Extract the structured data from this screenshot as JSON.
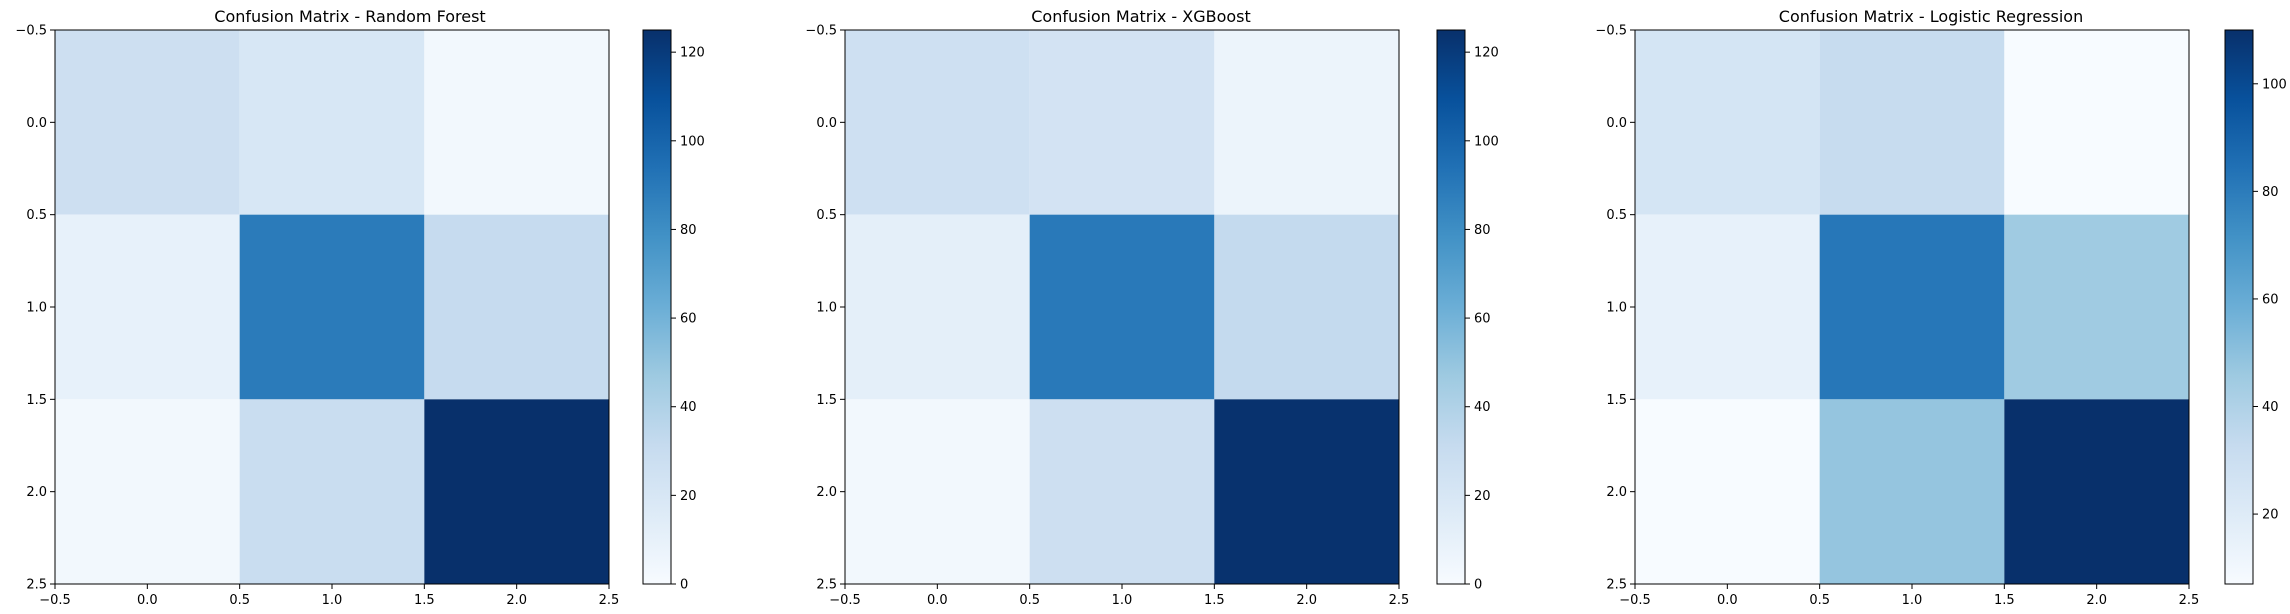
{
  "chart_data": [
    {
      "type": "heatmap",
      "title": "Confusion Matrix - Random Forest",
      "matrix": [
        [
          27,
          20,
          3
        ],
        [
          10,
          89,
          31
        ],
        [
          3,
          29,
          125
        ]
      ],
      "xlim": [
        -0.5,
        2.5
      ],
      "ylim": [
        2.5,
        -0.5
      ],
      "xticks": [
        "-0.5",
        "0.0",
        "0.5",
        "1.0",
        "1.5",
        "2.0",
        "2.5"
      ],
      "yticks": [
        "-0.5",
        "0.0",
        "0.5",
        "1.0",
        "1.5",
        "2.0",
        "2.5"
      ],
      "colorbar": {
        "min": 0,
        "max": 125,
        "ticks": [
          "0",
          "20",
          "40",
          "60",
          "80",
          "100",
          "120"
        ]
      },
      "colormap": "Blues"
    },
    {
      "type": "heatmap",
      "title": "Confusion Matrix - XGBoost",
      "matrix": [
        [
          26,
          23,
          7
        ],
        [
          12,
          90,
          32
        ],
        [
          3,
          27,
          124
        ]
      ],
      "xlim": [
        -0.5,
        2.5
      ],
      "ylim": [
        2.5,
        -0.5
      ],
      "xticks": [
        "-0.5",
        "0.0",
        "0.5",
        "1.0",
        "1.5",
        "2.0",
        "2.5"
      ],
      "yticks": [
        "-0.5",
        "0.0",
        "0.5",
        "1.0",
        "1.5",
        "2.0",
        "2.5"
      ],
      "colorbar": {
        "min": 0,
        "max": 125,
        "ticks": [
          "0",
          "20",
          "40",
          "60",
          "80",
          "100",
          "120"
        ]
      },
      "colormap": "Blues"
    },
    {
      "type": "heatmap",
      "title": "Confusion Matrix - Logistic Regression",
      "matrix": [
        [
          25,
          32,
          7
        ],
        [
          15,
          82,
          45
        ],
        [
          7,
          48,
          110
        ]
      ],
      "xlim": [
        -0.5,
        2.5
      ],
      "ylim": [
        2.5,
        -0.5
      ],
      "xticks": [
        "-0.5",
        "0.0",
        "0.5",
        "1.0",
        "1.5",
        "2.0",
        "2.5"
      ],
      "yticks": [
        "-0.5",
        "0.0",
        "0.5",
        "1.0",
        "1.5",
        "2.0",
        "2.5"
      ],
      "colorbar": {
        "min": 7,
        "max": 110,
        "ticks": [
          "20",
          "40",
          "60",
          "80",
          "100"
        ]
      },
      "colormap": "Blues"
    }
  ]
}
